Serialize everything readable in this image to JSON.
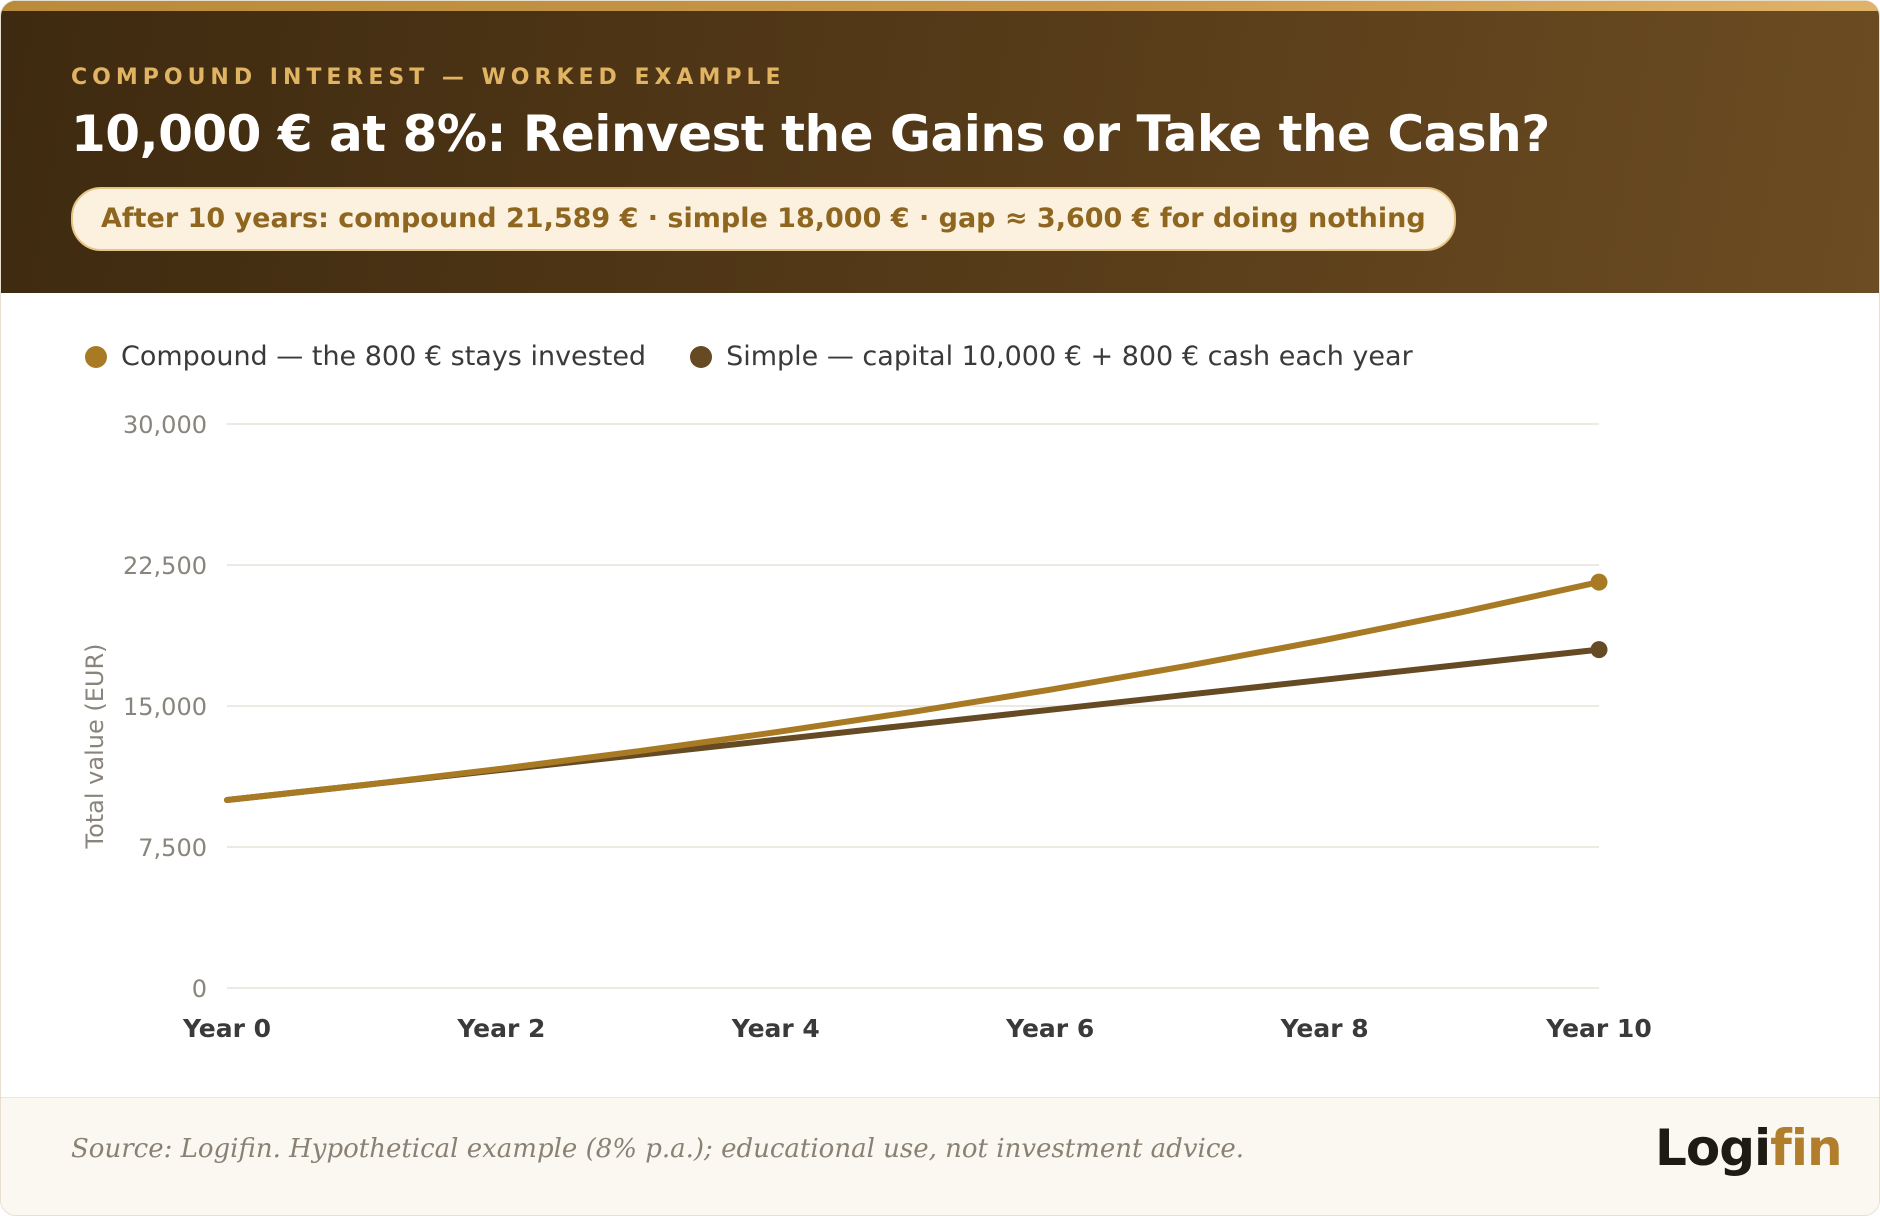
{
  "header": {
    "eyebrow": "COMPOUND INTEREST — WORKED EXAMPLE",
    "title": "10,000 € at 8%: Reinvest the Gains or Take the Cash?",
    "callout": "After 10 years: compound 21,589 € · simple 18,000 € · gap ≈ 3,600 € for doing nothing"
  },
  "colors": {
    "compound": "#a97a24",
    "simple": "#654a24",
    "grid": "#e7e3da",
    "tick": "#8a857c",
    "xtick": "#3a3a3a"
  },
  "chart_data": {
    "type": "line",
    "x": [
      0,
      1,
      2,
      3,
      4,
      5,
      6,
      7,
      8,
      9,
      10
    ],
    "x_tick_values": [
      0,
      2,
      4,
      6,
      8,
      10
    ],
    "x_tick_labels": [
      "Year 0",
      "Year 2",
      "Year 4",
      "Year 6",
      "Year 8",
      "Year 10"
    ],
    "ylabel": "Total value (EUR)",
    "ylim": [
      0,
      30000
    ],
    "y_tick_values": [
      0,
      7500,
      15000,
      22500,
      30000
    ],
    "y_tick_labels": [
      "0",
      "7,500",
      "15,000",
      "22,500",
      "30,000"
    ],
    "grid": true,
    "legend_position": "top-left",
    "series": [
      {
        "name": "Compound — the 800 € stays invested",
        "values": [
          10000,
          10800,
          11664,
          12597,
          13605,
          14693,
          15869,
          17138,
          18509,
          19990,
          21589
        ]
      },
      {
        "name": "Simple — capital 10,000 € + 800 € cash each year",
        "values": [
          10000,
          10800,
          11600,
          12400,
          13200,
          14000,
          14800,
          15600,
          16400,
          17200,
          18000
        ]
      }
    ]
  },
  "footer": {
    "source": "Source: Logifin. Hypothetical example (8% p.a.); educational use, not investment advice.",
    "logo_part1": "Logi",
    "logo_part2": "fin"
  }
}
